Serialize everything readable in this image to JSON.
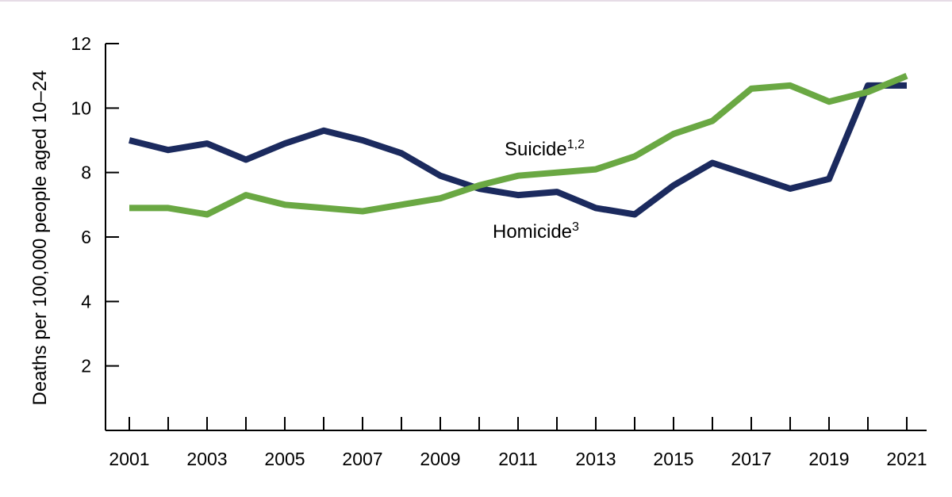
{
  "chart_data": {
    "type": "line",
    "title": "",
    "xlabel": "",
    "ylabel": "Deaths per 100,000 people aged 10–24",
    "x": [
      2001,
      2002,
      2003,
      2004,
      2005,
      2006,
      2007,
      2008,
      2009,
      2010,
      2011,
      2012,
      2013,
      2014,
      2015,
      2016,
      2017,
      2018,
      2019,
      2020,
      2021
    ],
    "x_tick_labels": [
      "2001",
      "2003",
      "2005",
      "2007",
      "2009",
      "2011",
      "2013",
      "2015",
      "2017",
      "2019",
      "2021"
    ],
    "y_tick_labels": [
      "2",
      "4",
      "6",
      "8",
      "10",
      "12"
    ],
    "ylim": [
      0,
      12
    ],
    "xlim": [
      2001,
      2021
    ],
    "grid": false,
    "legend": "inline labels next to lines",
    "series": [
      {
        "name": "Homicide",
        "label_superscript": "3",
        "color": "#1b2a5e",
        "values": [
          9.0,
          8.7,
          8.9,
          8.4,
          8.9,
          9.3,
          9.0,
          8.6,
          7.9,
          7.5,
          7.3,
          7.4,
          6.9,
          6.7,
          7.6,
          8.3,
          7.9,
          7.5,
          7.8,
          10.7,
          10.7
        ]
      },
      {
        "name": "Suicide",
        "label_superscript": "1,2",
        "color": "#6aa843",
        "values": [
          6.9,
          6.9,
          6.7,
          7.3,
          7.0,
          6.9,
          6.8,
          7.0,
          7.2,
          7.6,
          7.9,
          8.0,
          8.1,
          8.5,
          9.2,
          9.6,
          10.6,
          10.7,
          10.2,
          10.5,
          11.0
        ]
      }
    ]
  }
}
